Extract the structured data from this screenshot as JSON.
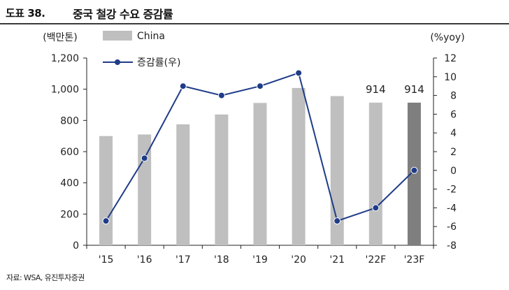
{
  "figure_no": "도표 38.",
  "title": "중국 철강 수요 증감률",
  "source": "자료: WSA, 유진투자증권",
  "chart_data": {
    "type": "bar+line",
    "categories": [
      "'15",
      "'16",
      "'17",
      "'18",
      "'19",
      "'20",
      "'21",
      "'22F",
      "'23F"
    ],
    "left_axis": {
      "unit": "(백만톤)",
      "range": [
        0,
        1200
      ],
      "ticks": [
        "0",
        "200",
        "400",
        "600",
        "800",
        "1,000",
        "1,200"
      ]
    },
    "right_axis": {
      "unit": "(%yoy)",
      "range": [
        -8,
        12
      ],
      "ticks": [
        "-8",
        "-6",
        "-4",
        "-2",
        "0",
        "2",
        "4",
        "6",
        "8",
        "10",
        "12"
      ]
    },
    "series": [
      {
        "name": "China",
        "kind": "bar",
        "axis": "left",
        "values": [
          700,
          710,
          775,
          838,
          912,
          1008,
          956,
          914,
          914
        ],
        "data_labels": [
          "",
          "",
          "",
          "",
          "",
          "",
          "",
          "914",
          "914"
        ],
        "color": "#bfbfbf",
        "highlight_color": "#7f7f7f",
        "highlight_index": 8
      },
      {
        "name": "증감률(우)",
        "kind": "line",
        "axis": "right",
        "values": [
          -5.4,
          1.3,
          9.0,
          8.0,
          9.0,
          10.4,
          -5.4,
          -4.0,
          0.0
        ],
        "color": "#1f3c88"
      }
    ],
    "legend": {
      "placement": "top-left"
    },
    "grid": false
  }
}
